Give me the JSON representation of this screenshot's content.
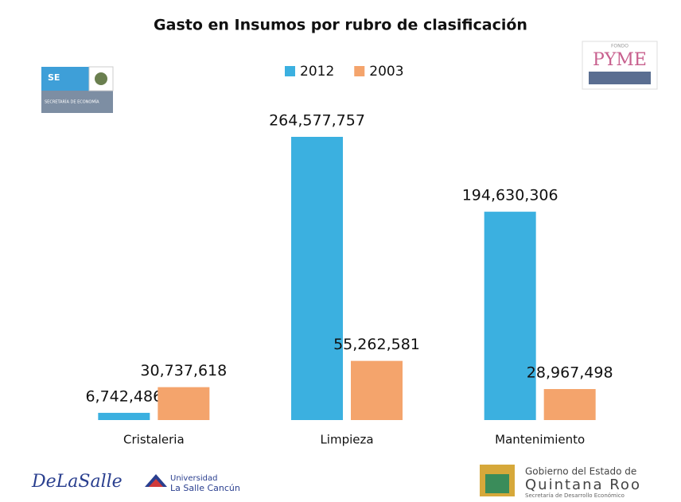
{
  "chart_data": {
    "type": "bar",
    "title": "Gasto en Insumos por rubro de clasificación",
    "categories": [
      "Cristaleria",
      "Limpieza",
      "Mantenimiento"
    ],
    "series": [
      {
        "name": "2012",
        "color": "#3bb0e0",
        "values": [
          6742486,
          264577757,
          194630306
        ],
        "value_labels": [
          "6,742,486",
          "264,577,757",
          "194,630,306"
        ]
      },
      {
        "name": "2003",
        "color": "#f4a46c",
        "values": [
          30737618,
          55262581,
          28967498
        ],
        "value_labels": [
          "30,737,618",
          "55,262,581",
          "28,967,498"
        ]
      }
    ],
    "legend": "top"
  },
  "logos": {
    "se": "SE",
    "se_name": "SECRETARÍA DE ECONOMÍA",
    "fondo": "FONDO",
    "pyme": "PYME",
    "lasalle": "DeLaSalle",
    "universidad": "Universidad",
    "campus": "La Salle Cancún",
    "gobierno": "Gobierno del Estado de",
    "estado": "Quintana Roo",
    "secretaria": "Secretaría de Desarrollo Económico"
  }
}
